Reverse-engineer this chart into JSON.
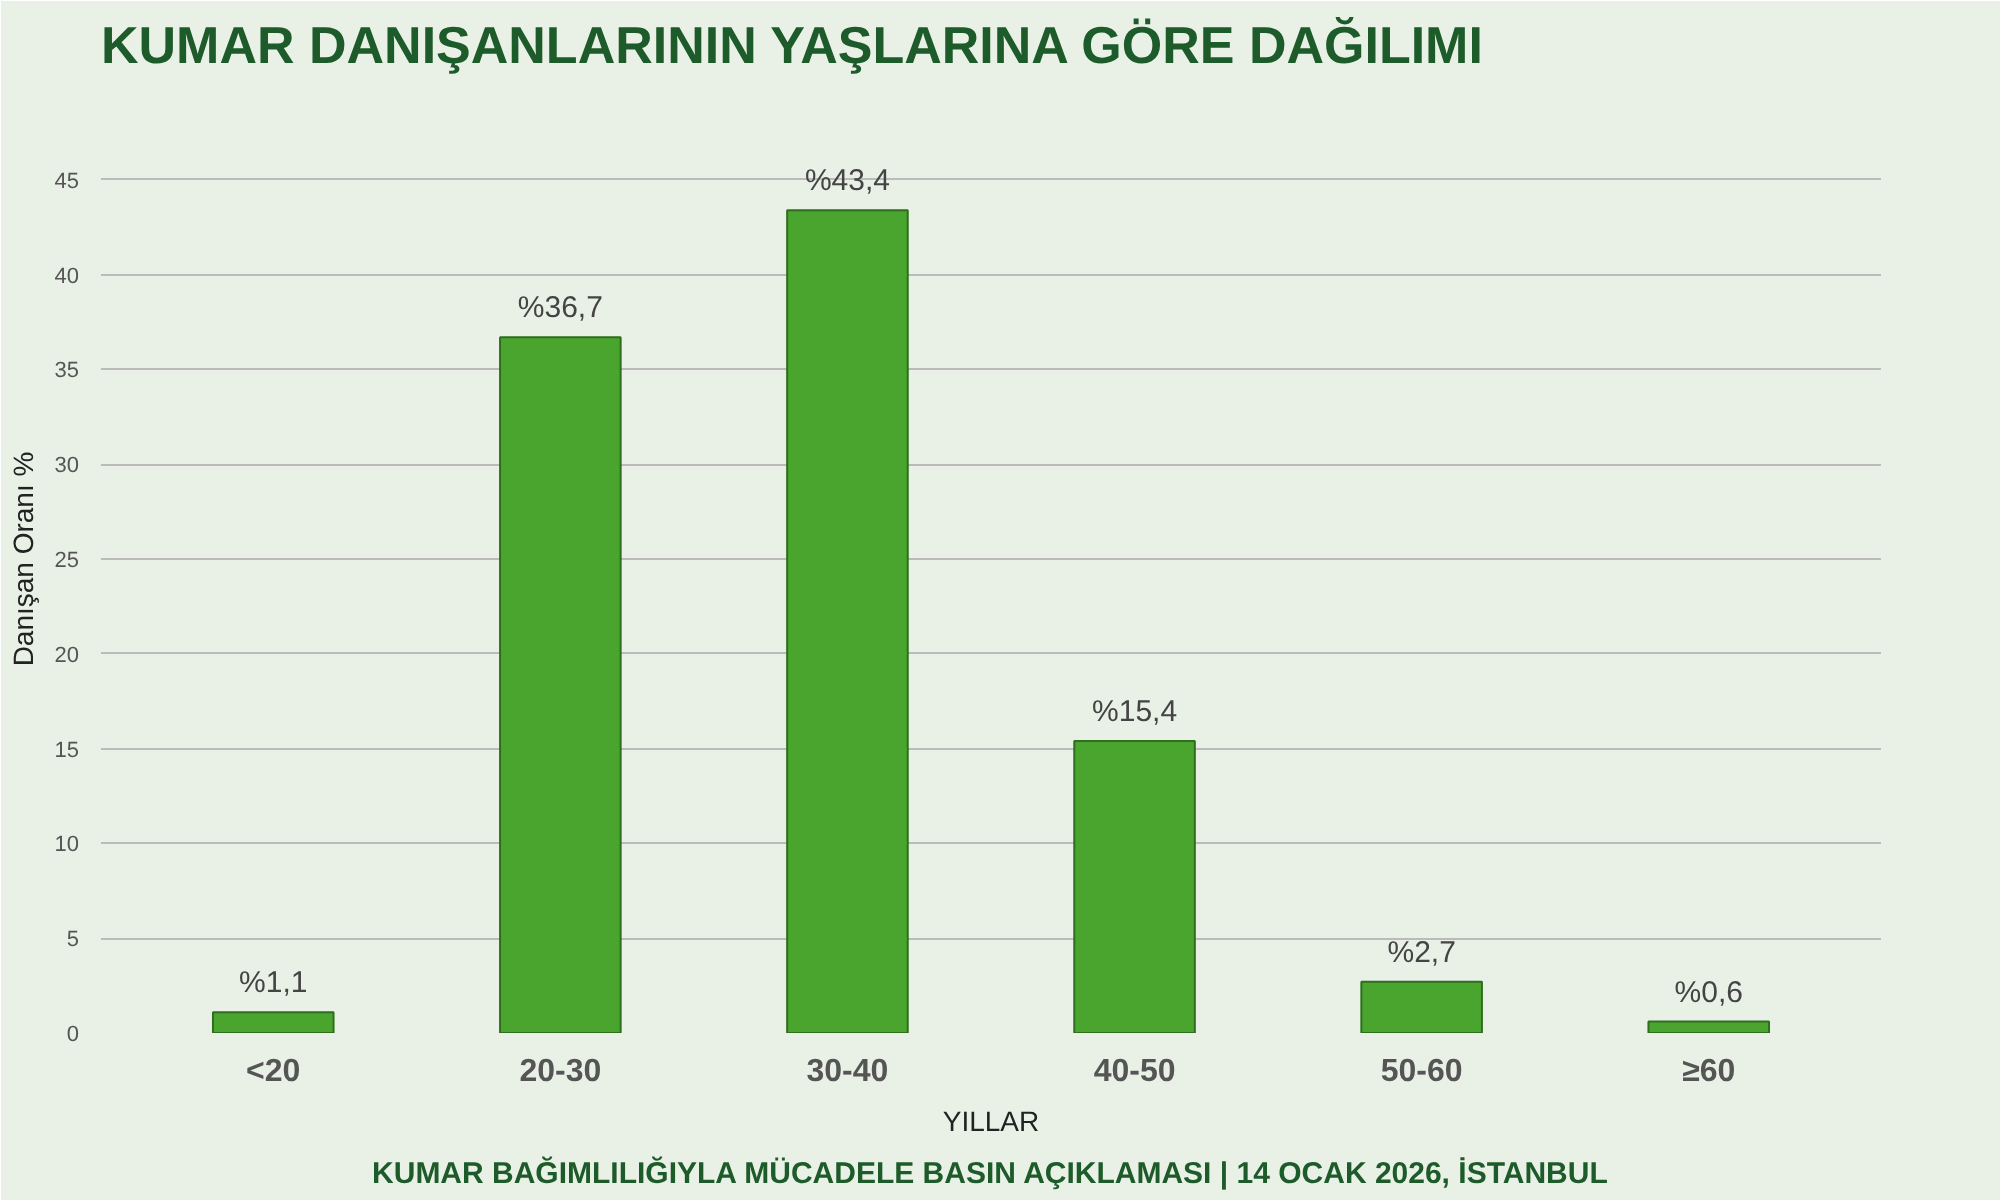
{
  "chart_data": {
    "type": "bar",
    "title": "KUMAR DANIŞANLARININ YAŞLARINA GÖRE DAĞILIMI",
    "xlabel": "YILLAR",
    "ylabel": "Danışan Oranı %",
    "categories": [
      "<20",
      "20-30",
      "30-40",
      "40-50",
      "50-60",
      "≥60"
    ],
    "values": [
      1.1,
      36.7,
      43.4,
      15.4,
      2.7,
      0.6
    ],
    "value_labels": [
      "%1,1",
      "%36,7",
      "%43,4",
      "%15,4",
      "%2,7",
      "%0,6"
    ],
    "color": "#4aa52e",
    "ylim": [
      0,
      50
    ],
    "yticks": [
      0,
      5,
      10,
      15,
      20,
      25,
      30,
      35,
      40,
      45,
      {
        "value": 50,
        "label": null
      }
    ],
    "grid": "y",
    "annotations": [
      "KUMAR BAĞIMLILIĞIYLA MÜCADELE BASIN AÇIKLAMASI | 14 OCAK 2026, İSTANBUL"
    ]
  }
}
